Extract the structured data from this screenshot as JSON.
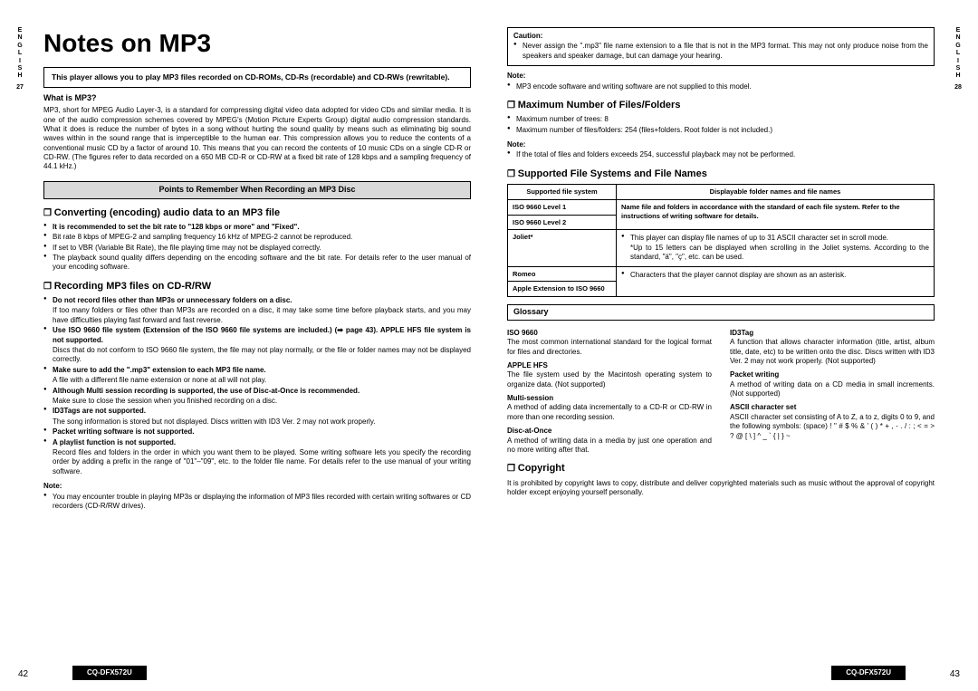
{
  "sideTab": {
    "lang": "ENGLISH",
    "leftPage": "27",
    "rightPage": "28"
  },
  "title": "Notes on MP3",
  "introBox": "This player allows you to play MP3 files recorded on CD-ROMs, CD-Rs (recordable) and CD-RWs (rewritable).",
  "whatIs": {
    "heading": "What is MP3?",
    "body": "MP3, short for MPEG Audio Layer-3, is a standard for compressing digital video data adopted for video CDs and similar media. It is one of the audio compression schemes covered by MPEG's (Motion Picture Experts Group) digital audio compression standards. What it does is reduce the number of bytes in a song without hurting the sound quality by means such as eliminating big sound waves within in the sound range that is imperceptible to the human ear. This compression allows you to reduce the contents of a conventional music CD by a factor of around 10. This means that you can record the contents of 10 music CDs on a single CD-R or CD-RW. (The figures refer to data recorded on a 650 MB CD-R or CD-RW at a fixed bit rate of 128 kbps and a sampling frequency of 44.1 kHz.)"
  },
  "sectionBar": "Points to Remember When Recording an MP3 Disc",
  "converting": {
    "heading": "Converting (encoding) audio data to an MP3 file",
    "items": [
      {
        "t": "It is recommended to set the bit rate to \"128 kbps or more\" and \"Fixed\".",
        "bold": true
      },
      {
        "t": "Bit rate 8 kbps of MPEG-2 and sampling frequency 16 kHz of MPEG-2 cannot be reproduced."
      },
      {
        "t": "If set to VBR (Variable Bit Rate), the file playing time may not be displayed correctly."
      },
      {
        "t": "The playback sound quality differs depending on the encoding software and the bit rate. For details refer to the user manual of your encoding software."
      }
    ]
  },
  "recording": {
    "heading": "Recording MP3 files on CD-R/RW",
    "items": [
      {
        "t": "Do not record files other than MP3s or unnecessary folders on a disc.",
        "bold": true,
        "sub": "If too many folders or files other than MP3s are recorded on a disc, it may take some time before playback starts, and you may have difficulties playing fast forward and fast reverse."
      },
      {
        "t": "Use ISO 9660 file system (Extension of the ISO 9660 file systems are included.) (➡ page 43). APPLE HFS file system is not supported.",
        "bold": true,
        "sub": "Discs that do not conform to ISO 9660 file system, the file may not play normally, or the file or folder names may not be displayed correctly."
      },
      {
        "t": "Make sure to add the \".mp3\" extension to each MP3 file name.",
        "bold": true,
        "sub": "A file with a different file name extension or none at all will not play."
      },
      {
        "t": "Although Multi session recording is supported, the use of Disc-at-Once is recommended.",
        "bold": true,
        "sub": "Make sure to close the session when you finished recording on a disc."
      },
      {
        "t": "ID3Tags are not supported.",
        "bold": true,
        "sub": "The song information is stored but not displayed. Discs written with ID3 Ver. 2 may not work properly."
      },
      {
        "t": "Packet writing software is not supported.",
        "bold": true
      },
      {
        "t": "A playlist function is not supported.",
        "bold": true,
        "sub": "Record files and folders in the order in which you want them to be played. Some writing software lets you specify the recording order by adding a prefix in the range of \"01\"–\"09\", etc. to the folder file name. For details refer to the use manual of your writing software."
      }
    ]
  },
  "note1": {
    "heading": "Note:",
    "items": [
      {
        "t": "You may encounter trouble in playing MP3s or displaying the information of MP3 files recorded with certain writing softwares or CD recorders (CD-R/RW drives)."
      }
    ]
  },
  "caution": {
    "title": "Caution:",
    "items": [
      {
        "t": "Never assign the \".mp3\" file name extension to a file that is not in the MP3 format. This may not only produce noise from the speakers and speaker damage, but can damage your hearing."
      }
    ]
  },
  "note2": {
    "heading": "Note:",
    "items": [
      {
        "t": "MP3 encode software and writing software are not supplied to this model."
      }
    ]
  },
  "maxFiles": {
    "heading": "Maximum Number of Files/Folders",
    "items": [
      {
        "t": "Maximum number of trees: 8"
      },
      {
        "t": "Maximum number of files/folders: 254 (files+folders. Root folder is not included.)"
      }
    ]
  },
  "note3": {
    "heading": "Note:",
    "items": [
      {
        "t": "If the total of files and folders exceeds 254, successful playback may not be performed."
      }
    ]
  },
  "supported": {
    "heading": "Supported File Systems and File Names",
    "header1": "Supported file system",
    "header2": "Displayable folder names and file names",
    "rows": [
      {
        "c1": "ISO 9660 Level 1",
        "c2": "Name file and folders in accordance with the standard of each file system. Refer to the instructions of writing software for details.",
        "rs": 2,
        "bold": true
      },
      {
        "c1": "ISO 9660 Level 2"
      },
      {
        "c1": "Joliet*",
        "c2": "This player can display file names of up to 31 ASCII character set in scroll mode.\n*Up to 15 letters can be displayed when scrolling in the Joliet systems. According to the standard, \"ä\", \"ç\", etc. can be used.",
        "rs": 1,
        "bullet": true
      },
      {
        "c1": "Romeo",
        "c2": "Characters that the player cannot display are shown as an asterisk.",
        "rs": 2,
        "bullet": true
      },
      {
        "c1": "Apple Extension to ISO 9660"
      }
    ]
  },
  "glossary": {
    "heading": "Glossary",
    "col1": [
      {
        "term": "ISO 9660",
        "def": "The most common international standard for the logical format for files and directories."
      },
      {
        "term": "APPLE HFS",
        "def": "The file system used by the Macintosh operating system to organize data. (Not supported)"
      },
      {
        "term": "Multi-session",
        "def": "A method of adding data incrementally to a CD-R or CD-RW in more than one recording session."
      },
      {
        "term": "Disc-at-Once",
        "def": "A method of writing data in a media by just one operation and no more writing after that."
      }
    ],
    "col2": [
      {
        "term": "ID3Tag",
        "def": "A function that allows character information (title, artist, album title, date, etc) to be written onto the disc. Discs written with ID3 Ver. 2 may not work properly. (Not supported)"
      },
      {
        "term": "Packet writing",
        "def": "A method of writing data on a CD media in small increments. (Not supported)"
      },
      {
        "term": "ASCII character set",
        "def": "ASCII character set consisting of A to Z, a to z, digits 0 to 9, and the following symbols: (space) ! \" # $ % & ' ( ) * + , - . / : ; < = > ? @ [ \\ ] ^ _ ` { | } ~"
      }
    ]
  },
  "copyright": {
    "heading": "Copyright",
    "body": "It is prohibited by copyright laws to copy, distribute and deliver copyrighted materials such as music without the approval of copyright holder except enjoying yourself personally."
  },
  "pageNumLeft": "42",
  "pageNumRight": "43",
  "model": "CQ-DFX572U"
}
